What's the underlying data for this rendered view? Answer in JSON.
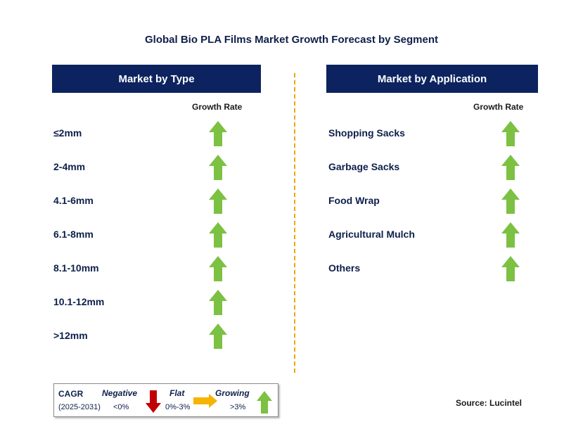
{
  "title": "Global Bio PLA Films Market Growth Forecast by Segment",
  "type_panel": {
    "header": "Market by Type",
    "column_label": "Growth Rate",
    "items": [
      "≤2mm",
      "2-4mm",
      "4.1-6mm",
      "6.1-8mm",
      "8.1-10mm",
      "10.1-12mm",
      ">12mm"
    ]
  },
  "application_panel": {
    "header": "Market by Application",
    "column_label": "Growth Rate",
    "items": [
      "Shopping Sacks",
      "Garbage Sacks",
      "Food Wrap",
      "Agricultural Mulch",
      "Others"
    ]
  },
  "legend": {
    "cagr_label": "CAGR",
    "period": "(2025-2031)",
    "negative_label": "Negative",
    "negative_range": "<0%",
    "flat_label": "Flat",
    "flat_range": "0%-3%",
    "growing_label": "Growing",
    "growing_range": ">3%"
  },
  "source": "Source: Lucintel",
  "colors": {
    "header_bg": "#0d2360",
    "growing_arrow": "#7cc142",
    "negative_arrow": "#c00000",
    "flat_arrow": "#f5b400",
    "divider": "#f0a500"
  }
}
